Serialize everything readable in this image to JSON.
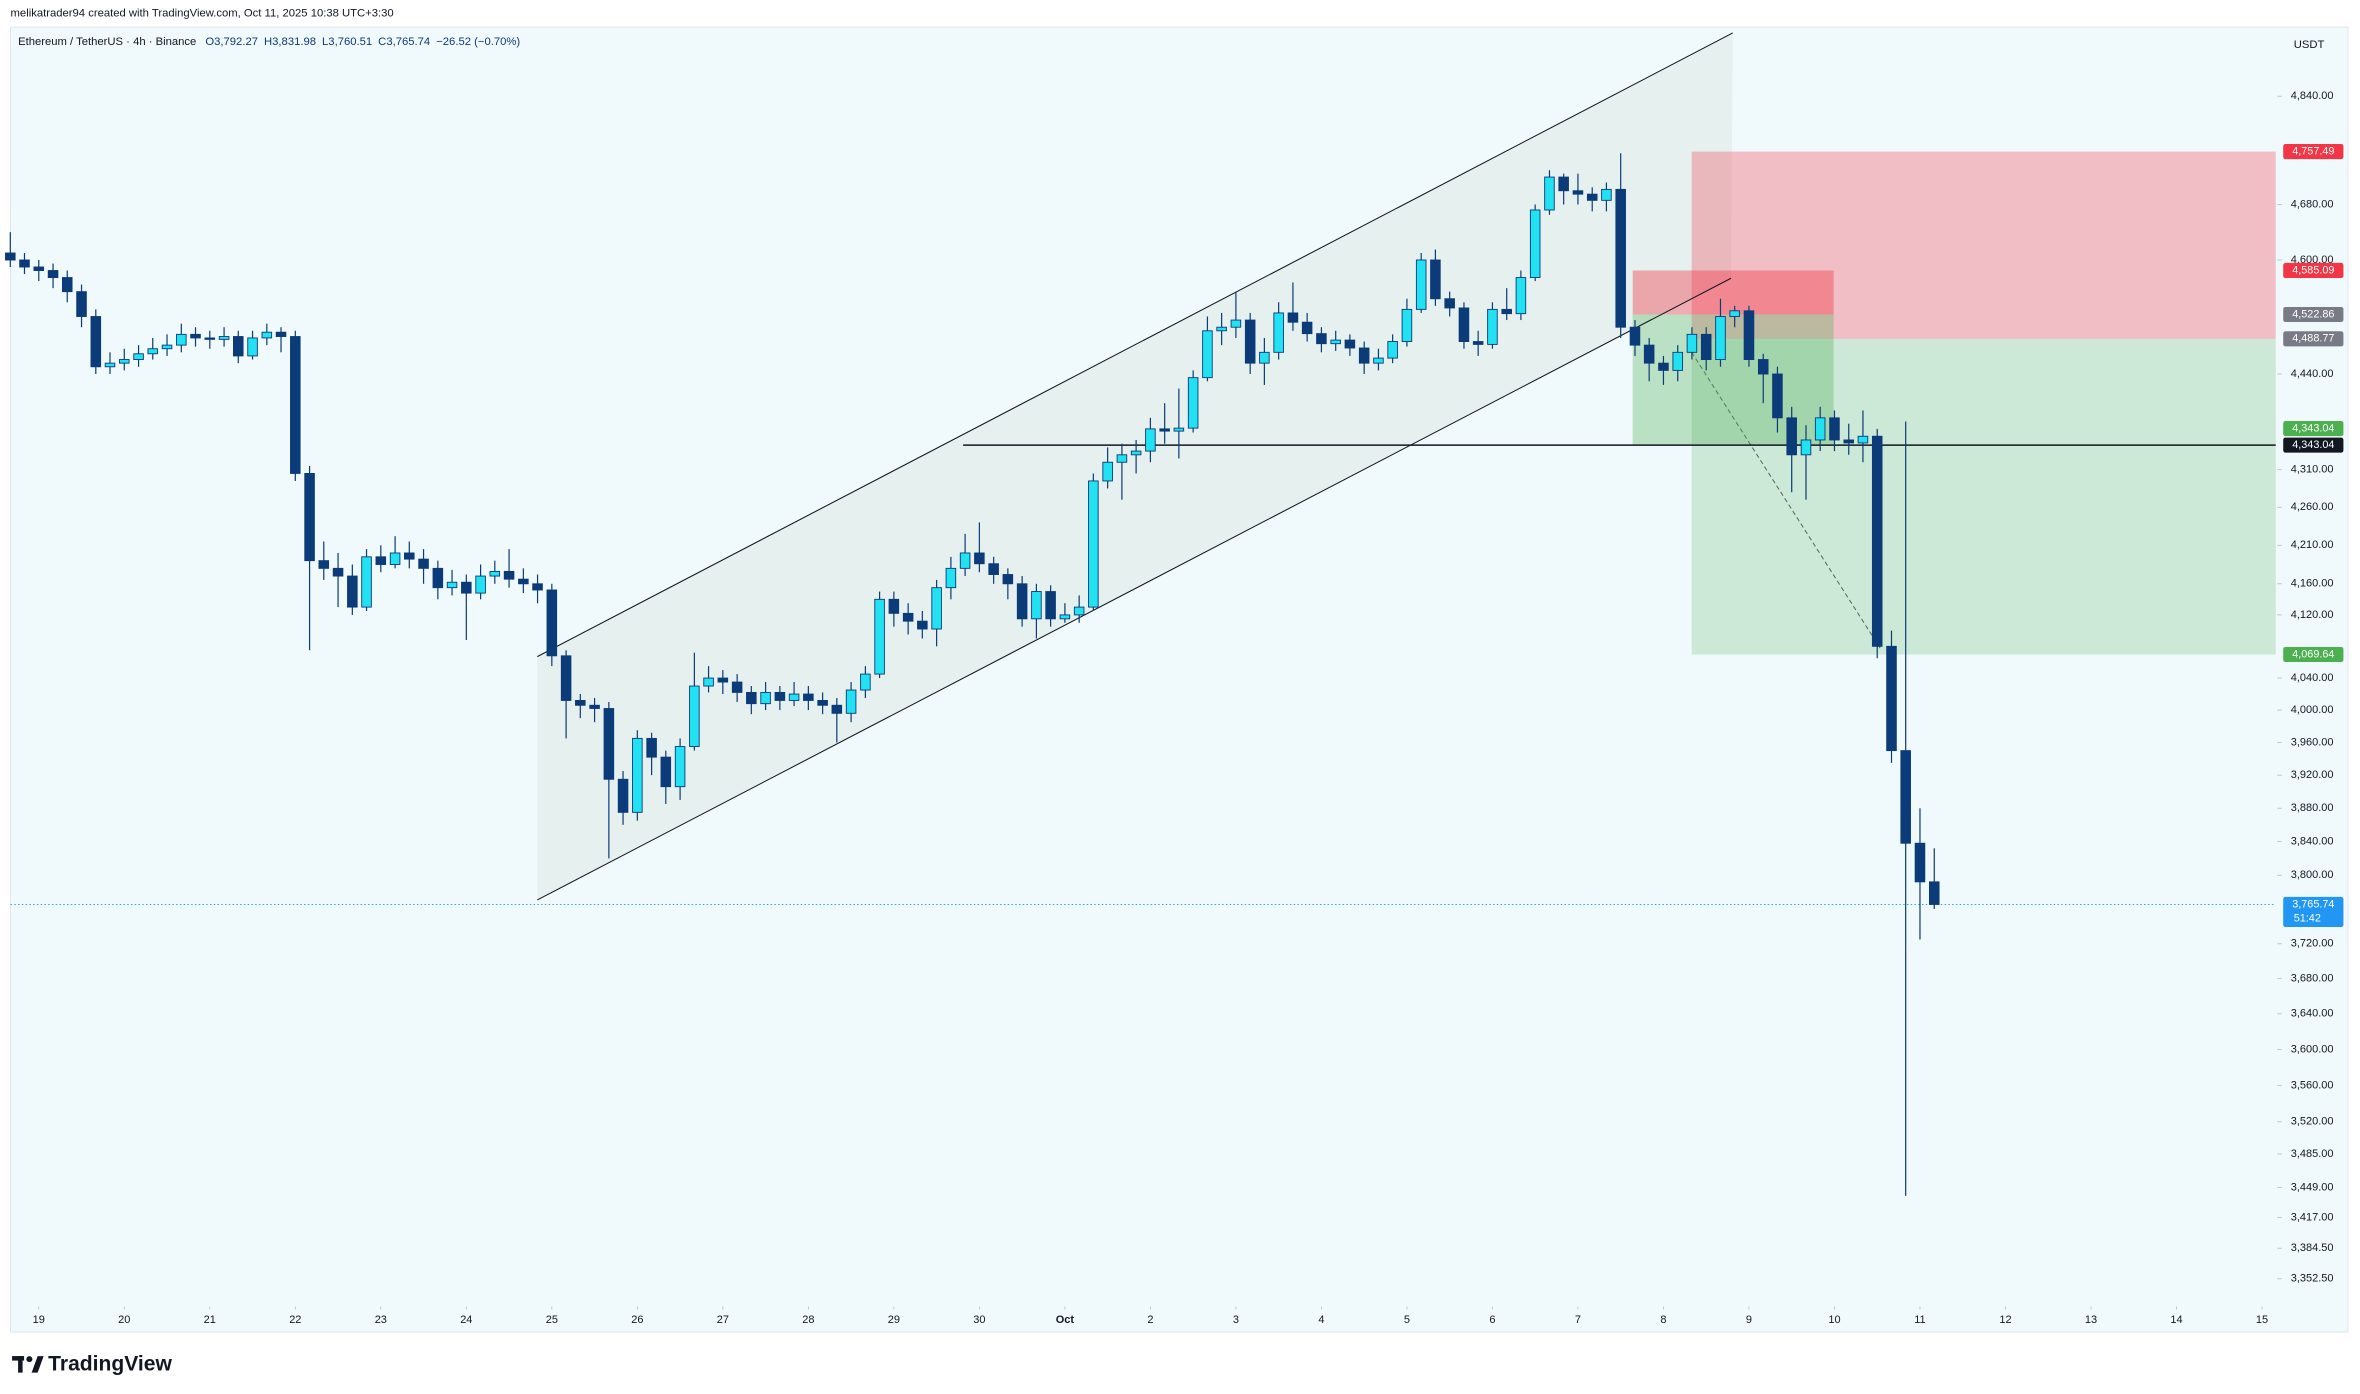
{
  "header": {
    "attribution": "melikatrader94 created with TradingView.com, Oct 11, 2025 10:38 UTC+3:30",
    "symbol": "Ethereum / TetherUS · 4h · Binance",
    "legend_values": [
      "O3,792.27",
      "H3,831.98",
      "L3,760.51",
      "C3,765.74",
      "−26.52 (−0.70%)"
    ],
    "currency": "USDT",
    "logo": "TradingView"
  },
  "chart_data": {
    "type": "candlestick",
    "log_scale": true,
    "up_color": "#22e1f2",
    "down_color": "#0b3b78",
    "wick_color": "#0b3b78",
    "x": [
      -0.333,
      -0.167,
      0,
      0.167,
      0.333,
      0.5,
      0.667,
      0.833,
      1,
      1.167,
      1.333,
      1.5,
      1.667,
      1.833,
      2,
      2.167,
      2.333,
      2.5,
      2.667,
      2.833,
      3,
      3.167,
      3.333,
      3.5,
      3.667,
      3.833,
      4,
      4.167,
      4.333,
      4.5,
      4.667,
      4.833,
      5,
      5.167,
      5.333,
      5.5,
      5.667,
      5.833,
      6,
      6.167,
      6.333,
      6.5,
      6.667,
      6.833,
      7,
      7.167,
      7.333,
      7.5,
      7.667,
      7.833,
      8,
      8.167,
      8.333,
      8.5,
      8.667,
      8.833,
      9,
      9.167,
      9.333,
      9.5,
      9.667,
      9.833,
      10,
      10.167,
      10.333,
      10.5,
      10.667,
      10.833,
      11,
      11.167,
      11.333,
      11.5,
      11.667,
      11.833,
      12,
      12.167,
      12.333,
      12.5,
      12.667,
      12.833,
      13,
      13.167,
      13.333,
      13.5,
      13.667,
      13.833,
      14,
      14.167,
      14.333,
      14.5,
      14.667,
      14.833,
      15,
      15.167,
      15.333,
      15.5,
      15.667,
      15.833,
      16,
      16.167,
      16.333,
      16.5,
      16.667,
      16.833,
      17,
      17.167,
      17.333,
      17.5,
      17.667,
      17.833,
      18,
      18.167,
      18.333,
      18.5,
      18.667,
      18.833,
      19,
      19.167,
      19.333,
      19.5,
      19.667,
      19.833,
      20,
      20.167,
      20.333,
      20.5,
      20.667,
      20.833,
      21,
      21.167,
      21.333,
      21.5,
      21.667,
      21.833,
      22,
      22.167
    ],
    "open": [
      4610,
      4600,
      4590,
      4585,
      4575,
      4555,
      4520,
      4450,
      4455,
      4460,
      4468,
      4475,
      4480,
      4495,
      4490,
      4488,
      4492,
      4465,
      4490,
      4498,
      4492,
      4305,
      4190,
      4180,
      4170,
      4130,
      4195,
      4185,
      4200,
      4192,
      4180,
      4155,
      4162,
      4148,
      4170,
      4176,
      4166,
      4160,
      4152,
      4068,
      4012,
      4006,
      4002,
      3915,
      3875,
      3965,
      3942,
      3906,
      3955,
      4030,
      4040,
      4035,
      4022,
      4008,
      4022,
      4012,
      4020,
      4012,
      4006,
      3996,
      4025,
      4045,
      4140,
      4122,
      4112,
      4102,
      4155,
      4180,
      4200,
      4186,
      4172,
      4160,
      4115,
      4150,
      4115,
      4120,
      4130,
      4295,
      4320,
      4330,
      4335,
      4365,
      4362,
      4366,
      4435,
      4500,
      4505,
      4515,
      4455,
      4470,
      4525,
      4512,
      4496,
      4482,
      4487,
      4476,
      4455,
      4462,
      4485,
      4530,
      4600,
      4545,
      4532,
      4485,
      4481,
      4530,
      4524,
      4575,
      4672,
      4720,
      4700,
      4695,
      4686,
      4702,
      4505,
      4480,
      4455,
      4445,
      4470,
      4495,
      4460,
      4520,
      4528,
      4460,
      4440,
      4380,
      4330,
      4350,
      4380,
      4350,
      4346,
      4355,
      4080,
      3950,
      3838,
      3792.27
    ],
    "high": [
      4640,
      4610,
      4600,
      4595,
      4585,
      4565,
      4530,
      4470,
      4475,
      4480,
      4490,
      4495,
      4510,
      4505,
      4500,
      4505,
      4500,
      4500,
      4510,
      4505,
      4500,
      4315,
      4215,
      4200,
      4185,
      4205,
      4210,
      4222,
      4215,
      4205,
      4190,
      4178,
      4172,
      4185,
      4190,
      4205,
      4180,
      4172,
      4160,
      4075,
      4020,
      4015,
      4010,
      3925,
      3975,
      3972,
      3950,
      3965,
      4072,
      4055,
      4050,
      4045,
      4030,
      4035,
      4030,
      4035,
      4030,
      4022,
      4015,
      4035,
      4055,
      4150,
      4150,
      4135,
      4125,
      4165,
      4195,
      4225,
      4240,
      4195,
      4180,
      4170,
      4160,
      4158,
      4135,
      4145,
      4305,
      4340,
      4345,
      4350,
      4380,
      4400,
      4420,
      4445,
      4520,
      4525,
      4555,
      4525,
      4490,
      4540,
      4568,
      4525,
      4505,
      4500,
      4495,
      4485,
      4475,
      4495,
      4545,
      4610,
      4615,
      4555,
      4540,
      4500,
      4540,
      4560,
      4585,
      4680,
      4730,
      4725,
      4725,
      4705,
      4712,
      4755,
      4515,
      4490,
      4465,
      4480,
      4505,
      4505,
      4545,
      4535,
      4535,
      4468,
      4450,
      4395,
      4370,
      4395,
      4390,
      4372,
      4390,
      4365,
      4100,
      4375,
      3880,
      3831.98
    ],
    "low": [
      4590,
      4580,
      4570,
      4560,
      4540,
      4505,
      4440,
      4440,
      4445,
      4450,
      4460,
      4465,
      4470,
      4478,
      4475,
      4478,
      4455,
      4460,
      4480,
      4470,
      4295,
      4075,
      4165,
      4130,
      4120,
      4125,
      4175,
      4180,
      4180,
      4160,
      4140,
      4145,
      4088,
      4140,
      4160,
      4155,
      4148,
      4135,
      4055,
      3965,
      3990,
      3985,
      3820,
      3860,
      3865,
      3920,
      3885,
      3890,
      3950,
      4022,
      4020,
      4010,
      3995,
      4000,
      4000,
      4005,
      4000,
      3995,
      3960,
      3985,
      4015,
      4040,
      4105,
      4095,
      4090,
      4080,
      4140,
      4170,
      4175,
      4160,
      4140,
      4105,
      4090,
      4105,
      4110,
      4110,
      4125,
      4285,
      4270,
      4305,
      4320,
      4345,
      4325,
      4360,
      4430,
      4480,
      4490,
      4440,
      4425,
      4460,
      4500,
      4485,
      4470,
      4472,
      4465,
      4440,
      4445,
      4455,
      4478,
      4525,
      4535,
      4520,
      4475,
      4465,
      4475,
      4515,
      4515,
      4570,
      4665,
      4680,
      4680,
      4670,
      4670,
      4490,
      4465,
      4430,
      4425,
      4430,
      4460,
      4445,
      4450,
      4505,
      4450,
      4400,
      4360,
      4280,
      4270,
      4335,
      4335,
      4330,
      4320,
      4065,
      3935,
      3440,
      3725,
      3760.51
    ],
    "close": [
      4600,
      4590,
      4585,
      4575,
      4555,
      4520,
      4450,
      4455,
      4460,
      4468,
      4475,
      4480,
      4495,
      4490,
      4488,
      4492,
      4465,
      4490,
      4498,
      4492,
      4305,
      4190,
      4180,
      4170,
      4130,
      4195,
      4185,
      4200,
      4192,
      4180,
      4155,
      4162,
      4148,
      4170,
      4176,
      4166,
      4160,
      4152,
      4068,
      4012,
      4006,
      4002,
      3915,
      3875,
      3965,
      3942,
      3906,
      3955,
      4030,
      4040,
      4035,
      4022,
      4008,
      4022,
      4012,
      4020,
      4012,
      4006,
      3996,
      4025,
      4045,
      4140,
      4122,
      4112,
      4102,
      4155,
      4180,
      4200,
      4186,
      4172,
      4160,
      4115,
      4150,
      4115,
      4120,
      4130,
      4295,
      4320,
      4330,
      4335,
      4365,
      4362,
      4366,
      4435,
      4500,
      4505,
      4515,
      4455,
      4470,
      4525,
      4512,
      4496,
      4482,
      4487,
      4476,
      4455,
      4462,
      4485,
      4530,
      4600,
      4545,
      4532,
      4485,
      4481,
      4530,
      4524,
      4575,
      4672,
      4720,
      4700,
      4695,
      4686,
      4702,
      4505,
      4480,
      4455,
      4445,
      4470,
      4495,
      4460,
      4520,
      4528,
      4460,
      4440,
      4380,
      4330,
      4350,
      4380,
      4350,
      4346,
      4355,
      4080,
      3950,
      3838,
      3792.27,
      3765.74
    ],
    "xlim": [
      -0.33,
      26.16
    ],
    "xticks": [
      {
        "value": 0,
        "label": "19"
      },
      {
        "value": 1,
        "label": "20"
      },
      {
        "value": 2,
        "label": "21"
      },
      {
        "value": 3,
        "label": "22"
      },
      {
        "value": 4,
        "label": "23"
      },
      {
        "value": 5,
        "label": "24"
      },
      {
        "value": 6,
        "label": "25"
      },
      {
        "value": 7,
        "label": "26"
      },
      {
        "value": 8,
        "label": "27"
      },
      {
        "value": 9,
        "label": "28"
      },
      {
        "value": 10,
        "label": "29"
      },
      {
        "value": 11,
        "label": "30"
      },
      {
        "value": 12,
        "label": "Oct"
      },
      {
        "value": 13,
        "label": "2"
      },
      {
        "value": 14,
        "label": "3"
      },
      {
        "value": 15,
        "label": "4"
      },
      {
        "value": 16,
        "label": "5"
      },
      {
        "value": 17,
        "label": "6"
      },
      {
        "value": 18,
        "label": "7"
      },
      {
        "value": 19,
        "label": "8"
      },
      {
        "value": 20,
        "label": "9"
      },
      {
        "value": 21,
        "label": "10"
      },
      {
        "value": 22,
        "label": "11"
      },
      {
        "value": 23,
        "label": "12"
      },
      {
        "value": 24,
        "label": "13"
      },
      {
        "value": 25,
        "label": "14"
      },
      {
        "value": 26,
        "label": "15"
      }
    ],
    "ylim": [
      3327,
      4945
    ],
    "yticks": [
      {
        "value": 4840,
        "label": "4,840.00"
      },
      {
        "value": 4680,
        "label": "4,680.00"
      },
      {
        "value": 4600,
        "label": "4,600.00"
      },
      {
        "value": 4440,
        "label": "4,440.00"
      },
      {
        "value": 4310,
        "label": "4,310.00"
      },
      {
        "value": 4260,
        "label": "4,260.00"
      },
      {
        "value": 4210,
        "label": "4,210.00"
      },
      {
        "value": 4160,
        "label": "4,160.00"
      },
      {
        "value": 4120,
        "label": "4,120.00"
      },
      {
        "value": 4040,
        "label": "4,040.00"
      },
      {
        "value": 4000,
        "label": "4,000.00"
      },
      {
        "value": 3960,
        "label": "3,960.00"
      },
      {
        "value": 3920,
        "label": "3,920.00"
      },
      {
        "value": 3880,
        "label": "3,880.00"
      },
      {
        "value": 3840,
        "label": "3,840.00"
      },
      {
        "value": 3800,
        "label": "3,800.00"
      },
      {
        "value": 3720,
        "label": "3,720.00"
      },
      {
        "value": 3680,
        "label": "3,680.00"
      },
      {
        "value": 3640,
        "label": "3,640.00"
      },
      {
        "value": 3600,
        "label": "3,600.00"
      },
      {
        "value": 3560,
        "label": "3,560.00"
      },
      {
        "value": 3520,
        "label": "3,520.00"
      },
      {
        "value": 3485,
        "label": "3,485.00"
      },
      {
        "value": 3449,
        "label": "3,449.00"
      },
      {
        "value": 3417,
        "label": "3,417.00"
      },
      {
        "value": 3384.5,
        "label": "3,384.50"
      },
      {
        "value": 3352.5,
        "label": "3,352.50"
      }
    ],
    "last_price": {
      "value": 3765.74,
      "label": "3,765.74",
      "countdown": "51:42",
      "color": "#2196f3"
    },
    "channel": {
      "color": "#131722",
      "fill": "#e4efec",
      "lower": {
        "x": [
          5.83,
          19.79
        ],
        "y": [
          3771,
          4574
        ]
      },
      "upper": {
        "x": [
          5.83,
          19.81
        ],
        "y": [
          4067,
          4936
        ]
      }
    },
    "level": {
      "x_start": 10.81,
      "value": 4343.04,
      "label": "4,343.04",
      "color": "#131722"
    },
    "positions": [
      {
        "x": [
          19.33,
          26.16
        ],
        "stop": {
          "value": 4757.49,
          "label": "4,757.49"
        },
        "entry": {
          "value": 4488.77,
          "label": "4,488.77"
        },
        "target": {
          "value": 4069.64,
          "label": "4,069.64"
        },
        "path": {
          "x": [
            19.33,
            21.55
          ],
          "y": [
            4470,
            4075
          ]
        }
      },
      {
        "x": [
          18.64,
          20.99
        ],
        "stop": {
          "value": 4585.09,
          "label": "4,585.09"
        },
        "entry": {
          "value": 4522.86,
          "label": "4,522.86"
        },
        "target": {
          "value": 4343.04,
          "label": "4,343.04"
        }
      }
    ],
    "stop_color": "#f23645",
    "entry_color": "#787b86",
    "target_color": "#4caf50"
  }
}
